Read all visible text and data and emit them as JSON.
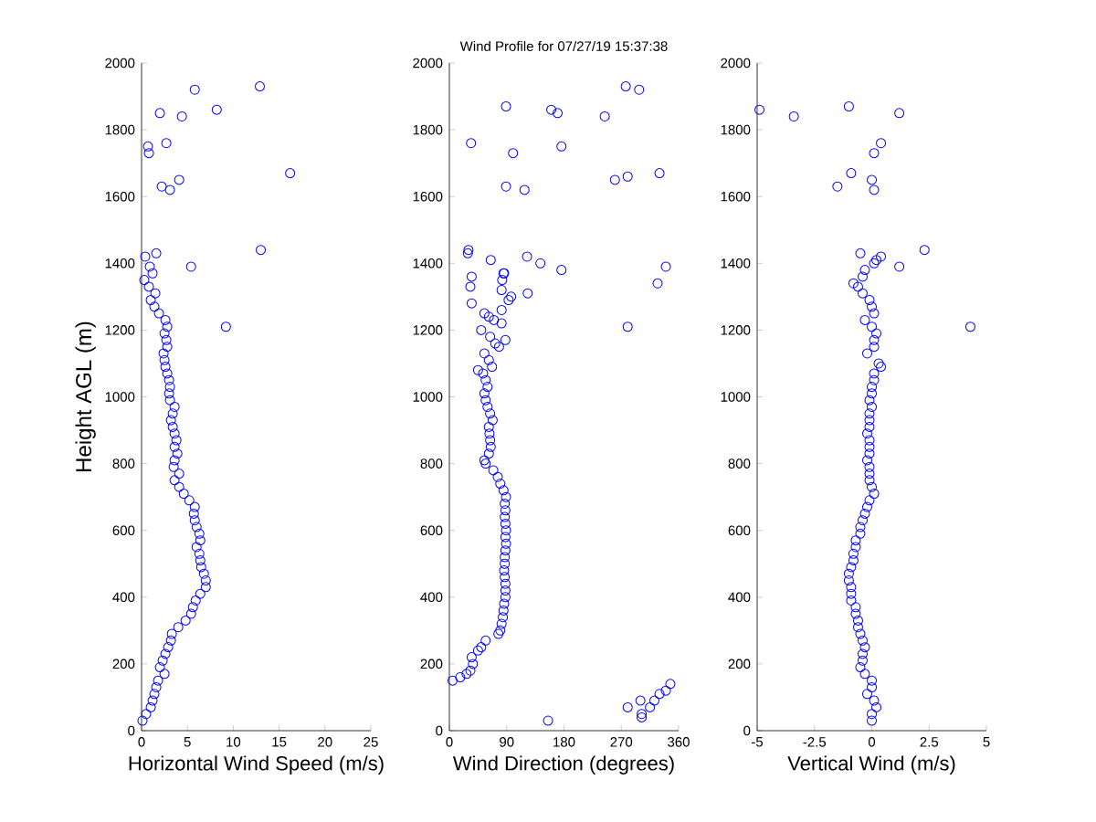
{
  "chart_data": [
    {
      "type": "scatter",
      "xlabel": "Horizontal Wind Speed (m/s)",
      "ylabel": "Height AGL (m)",
      "xlim": [
        0,
        25
      ],
      "ylim": [
        0,
        2000
      ],
      "xticks": [
        0,
        5,
        10,
        15,
        20,
        25
      ],
      "yticks": [
        0,
        200,
        400,
        600,
        800,
        1000,
        1200,
        1400,
        1600,
        1800,
        2000
      ],
      "marker": "circle",
      "series": [
        {
          "color": "#0000ff",
          "x": [
            0.1,
            0.5,
            1.0,
            1.2,
            1.4,
            1.6,
            1.8,
            2.5,
            2.0,
            2.3,
            2.6,
            2.9,
            3.2,
            3.3,
            4.0,
            4.8,
            5.4,
            5.6,
            5.9,
            6.4,
            7.0,
            7.0,
            6.8,
            6.5,
            6.4,
            6.3,
            6.0,
            6.4,
            6.3,
            6.0,
            5.8,
            5.7,
            5.8,
            5.2,
            4.6,
            4.1,
            3.6,
            4.1,
            3.5,
            3.6,
            3.9,
            3.6,
            3.8,
            3.6,
            3.4,
            3.2,
            3.4,
            3.6,
            3.1,
            3.0,
            3.1,
            3.0,
            2.8,
            2.6,
            2.5,
            2.4,
            2.8,
            2.7,
            2.5,
            2.8,
            2.6,
            1.9,
            1.4,
            1.0,
            1.5,
            0.8,
            0.3,
            1.2,
            0.9,
            5.8,
            12.9,
            2.0,
            4.4,
            8.2,
            0.7,
            0.8,
            2.7,
            2.2,
            3.1,
            4.1,
            16.2,
            0.4,
            1.6,
            13.0,
            5.4,
            9.2
          ],
          "values": [
            30,
            50,
            70,
            90,
            110,
            130,
            150,
            170,
            190,
            210,
            230,
            250,
            270,
            290,
            310,
            330,
            350,
            370,
            390,
            410,
            430,
            450,
            470,
            490,
            510,
            530,
            550,
            570,
            590,
            610,
            630,
            650,
            670,
            690,
            710,
            730,
            750,
            770,
            790,
            810,
            830,
            850,
            870,
            890,
            910,
            930,
            950,
            970,
            990,
            1010,
            1030,
            1050,
            1070,
            1090,
            1110,
            1130,
            1150,
            1170,
            1190,
            1210,
            1230,
            1250,
            1270,
            1290,
            1310,
            1330,
            1350,
            1370,
            1390,
            1920,
            1930,
            1850,
            1840,
            1860,
            1750,
            1730,
            1760,
            1630,
            1620,
            1650,
            1670,
            1420,
            1430,
            1440,
            1390,
            1210
          ]
        }
      ]
    },
    {
      "type": "scatter",
      "title": "Wind Profile for  07/27/19 15:37:38",
      "xlabel": "Wind Direction (degrees)",
      "xlim": [
        0,
        360
      ],
      "ylim": [
        0,
        2000
      ],
      "xticks": [
        0,
        90,
        180,
        270,
        360
      ],
      "yticks": [
        0,
        200,
        400,
        600,
        800,
        1000,
        1200,
        1400,
        1600,
        1800,
        2000
      ],
      "marker": "circle",
      "series": [
        {
          "color": "#0000ff",
          "x": [
            5,
            17,
            27,
            33,
            37,
            35,
            45,
            50,
            57,
            77,
            80,
            82,
            84,
            85,
            86,
            88,
            88,
            88,
            87,
            86,
            87,
            87,
            88,
            89,
            88,
            89,
            88,
            87,
            88,
            87,
            89,
            85,
            80,
            76,
            69,
            57,
            55,
            62,
            65,
            64,
            63,
            62,
            68,
            64,
            60,
            57,
            55,
            60,
            57,
            53,
            45,
            67,
            62,
            55,
            72,
            64,
            50,
            82,
            82,
            86,
            55,
            62,
            70,
            88,
            78,
            35,
            33,
            35,
            97,
            93,
            83,
            85,
            82,
            277,
            298,
            89,
            160,
            170,
            244,
            34,
            100,
            176,
            89,
            118,
            260,
            280,
            330,
            30,
            29,
            65,
            122,
            143,
            176,
            340,
            123,
            327,
            280,
            155,
            280,
            300,
            302,
            302,
            315,
            322,
            330,
            340,
            347
          ],
          "values": [
            150,
            160,
            170,
            180,
            200,
            220,
            240,
            250,
            270,
            290,
            300,
            320,
            340,
            360,
            380,
            400,
            420,
            440,
            460,
            480,
            500,
            520,
            540,
            560,
            580,
            600,
            620,
            640,
            660,
            680,
            700,
            720,
            740,
            760,
            780,
            800,
            810,
            830,
            850,
            870,
            890,
            910,
            930,
            950,
            970,
            990,
            1010,
            1030,
            1050,
            1070,
            1080,
            1090,
            1110,
            1130,
            1160,
            1180,
            1200,
            1220,
            1260,
            1370,
            1250,
            1240,
            1230,
            1170,
            1150,
            1360,
            1330,
            1280,
            1300,
            1290,
            1350,
            1370,
            1320,
            1930,
            1920,
            1870,
            1860,
            1850,
            1840,
            1760,
            1730,
            1750,
            1630,
            1620,
            1650,
            1660,
            1670,
            1440,
            1430,
            1410,
            1420,
            1400,
            1380,
            1390,
            1310,
            1340,
            1210,
            30,
            70,
            90,
            50,
            40,
            70,
            90,
            110,
            120,
            140
          ]
        }
      ]
    },
    {
      "type": "scatter",
      "xlabel": "Vertical Wind (m/s)",
      "xlim": [
        -5,
        5
      ],
      "ylim": [
        0,
        2000
      ],
      "xticks": [
        -5,
        -2.5,
        0,
        2.5,
        5
      ],
      "yticks": [
        0,
        200,
        400,
        600,
        800,
        1000,
        1200,
        1400,
        1600,
        1800,
        2000
      ],
      "marker": "circle",
      "series": [
        {
          "color": "#0000ff",
          "x": [
            0.0,
            0.0,
            0.2,
            0.1,
            -0.2,
            0.0,
            0.0,
            -0.3,
            -0.5,
            -0.4,
            -0.4,
            -0.3,
            -0.4,
            -0.5,
            -0.6,
            -0.6,
            -0.7,
            -0.7,
            -0.9,
            -0.9,
            -0.9,
            -1.0,
            -1.0,
            -0.9,
            -0.8,
            -0.8,
            -0.7,
            -0.7,
            -0.5,
            -0.5,
            -0.4,
            -0.3,
            -0.2,
            -0.1,
            0.1,
            0.0,
            -0.1,
            -0.1,
            -0.1,
            -0.2,
            -0.1,
            -0.1,
            -0.1,
            -0.2,
            -0.1,
            -0.1,
            -0.1,
            0.0,
            -0.1,
            0.0,
            0.0,
            0.1,
            0.1,
            0.4,
            0.3,
            -0.2,
            0.1,
            0.1,
            0.2,
            0.0,
            -0.3,
            0.1,
            0.0,
            -0.1,
            -0.4,
            -0.6,
            -0.8,
            -0.4,
            -0.3,
            -4.9,
            -3.4,
            -1.0,
            1.2,
            0.1,
            0.4,
            0.0,
            -1.5,
            -0.9,
            0.1,
            2.3,
            1.2,
            4.3,
            0.4,
            -0.5,
            0.2,
            0.1
          ],
          "values": [
            30,
            50,
            70,
            90,
            110,
            130,
            150,
            170,
            190,
            210,
            230,
            250,
            270,
            290,
            310,
            330,
            350,
            370,
            390,
            410,
            430,
            450,
            470,
            490,
            510,
            530,
            550,
            570,
            590,
            610,
            630,
            650,
            670,
            690,
            710,
            730,
            750,
            770,
            790,
            810,
            830,
            850,
            870,
            890,
            910,
            930,
            950,
            970,
            990,
            1010,
            1030,
            1050,
            1070,
            1090,
            1100,
            1130,
            1150,
            1170,
            1190,
            1210,
            1230,
            1250,
            1270,
            1290,
            1310,
            1330,
            1340,
            1360,
            1380,
            1860,
            1840,
            1870,
            1850,
            1730,
            1760,
            1650,
            1630,
            1670,
            1620,
            1440,
            1390,
            1210,
            1420,
            1430,
            1410,
            1400
          ]
        }
      ]
    }
  ]
}
